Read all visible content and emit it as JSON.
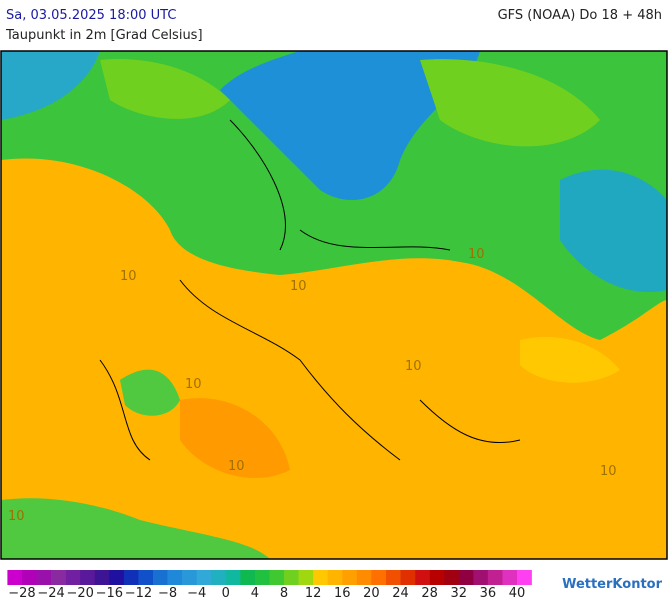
{
  "header": {
    "title": "Sa, 03.05.2025 18:00 UTC",
    "model": "GFS (NOAA) Do 18 + 48h",
    "subtitle": "Taupunkt in 2m [Grad Celsius]"
  },
  "map": {
    "contour_labels": [
      "10",
      "10",
      "10",
      "10",
      "10",
      "10",
      "10",
      "10"
    ]
  },
  "legend": {
    "start": -30,
    "step": 2,
    "colors": [
      "#cc00cc",
      "#b000b8",
      "#9a10aa",
      "#8a2aa0",
      "#7020a0",
      "#5a189a",
      "#3c1494",
      "#2010a0",
      "#1030b8",
      "#1050c8",
      "#1870d0",
      "#2088d8",
      "#2898d8",
      "#30a8d8",
      "#20b0c0",
      "#10b8a0",
      "#10b850",
      "#20c040",
      "#40c830",
      "#70d020",
      "#a0d810",
      "#ffc800",
      "#ffb400",
      "#ffa000",
      "#ff8c00",
      "#ff7000",
      "#f05000",
      "#e03000",
      "#d01010",
      "#b80000",
      "#a00010",
      "#900040",
      "#a01070",
      "#c02090",
      "#e030c0",
      "#ff40f0"
    ],
    "ticks": [
      {
        "value": -28,
        "label": "−28"
      },
      {
        "value": -24,
        "label": "−24"
      },
      {
        "value": -20,
        "label": "−20"
      },
      {
        "value": -16,
        "label": "−16"
      },
      {
        "value": -12,
        "label": "−12"
      },
      {
        "value": -8,
        "label": "−8"
      },
      {
        "value": -4,
        "label": "−4"
      },
      0,
      4,
      8,
      12,
      16,
      20,
      24,
      28,
      32,
      36,
      40
    ]
  },
  "brand": "WetterKontor"
}
